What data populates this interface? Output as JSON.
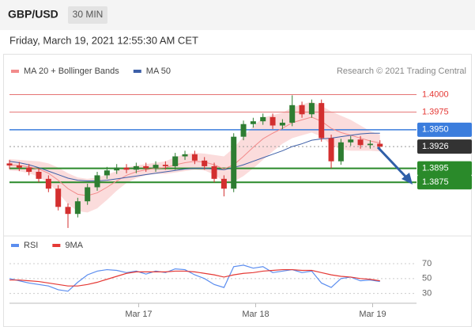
{
  "header": {
    "symbol": "GBP/USD",
    "timeframe": "30 MIN",
    "timestamp": "Friday, March 19, 2021 12:55:30 AM CET",
    "credit": "Research © 2021 Trading Central"
  },
  "chart_data": [
    {
      "type": "candlestick",
      "x": [
        0,
        4,
        8,
        12,
        16,
        20,
        24,
        28,
        32,
        36,
        40,
        44,
        48,
        52,
        56,
        60,
        64,
        68,
        72,
        76,
        80,
        84,
        88,
        92,
        96,
        100,
        104,
        108,
        112,
        116,
        120,
        124,
        128,
        132,
        136,
        140,
        144,
        148,
        152
      ],
      "open": [
        1.3902,
        1.3899,
        1.3896,
        1.389,
        1.388,
        1.3866,
        1.384,
        1.383,
        1.3848,
        1.3868,
        1.3885,
        1.3892,
        1.3896,
        1.3893,
        1.3898,
        1.3895,
        1.39,
        1.3898,
        1.3912,
        1.3915,
        1.3906,
        1.3898,
        1.388,
        1.3866,
        1.394,
        1.3958,
        1.3962,
        1.3968,
        1.3956,
        1.396,
        1.3985,
        1.3972,
        1.3988,
        1.3938,
        1.3905,
        1.3932,
        1.3936,
        1.3928,
        1.393
      ],
      "high": [
        1.3907,
        1.3904,
        1.3901,
        1.3895,
        1.3885,
        1.3871,
        1.3845,
        1.3853,
        1.3873,
        1.389,
        1.3897,
        1.3901,
        1.3901,
        1.3903,
        1.3903,
        1.3905,
        1.3905,
        1.3917,
        1.392,
        1.392,
        1.3911,
        1.3903,
        1.3885,
        1.3945,
        1.3963,
        1.3967,
        1.3973,
        1.3973,
        1.3965,
        1.3999,
        1.399,
        1.3993,
        1.3993,
        1.3943,
        1.3937,
        1.3941,
        1.3941,
        1.3935,
        1.3935
      ],
      "low": [
        1.3894,
        1.3891,
        1.3885,
        1.3875,
        1.3861,
        1.3835,
        1.381,
        1.3825,
        1.3843,
        1.3863,
        1.388,
        1.3887,
        1.3888,
        1.3888,
        1.389,
        1.389,
        1.3893,
        1.3893,
        1.3907,
        1.3901,
        1.3893,
        1.3875,
        1.3855,
        1.3861,
        1.3935,
        1.3953,
        1.3957,
        1.3951,
        1.3951,
        1.3955,
        1.3967,
        1.3967,
        1.3933,
        1.3895,
        1.39,
        1.3927,
        1.3923,
        1.3923,
        1.3921
      ],
      "close": [
        1.3899,
        1.3896,
        1.389,
        1.388,
        1.3866,
        1.384,
        1.383,
        1.3848,
        1.3868,
        1.3885,
        1.3892,
        1.3896,
        1.3893,
        1.3898,
        1.3895,
        1.39,
        1.3898,
        1.3912,
        1.3915,
        1.3906,
        1.3898,
        1.388,
        1.3866,
        1.394,
        1.3958,
        1.3962,
        1.3968,
        1.3956,
        1.396,
        1.3985,
        1.3972,
        1.3988,
        1.3938,
        1.3905,
        1.3932,
        1.3936,
        1.3928,
        1.393,
        1.3926
      ],
      "up_color": "#2e7d32",
      "down_color": "#d32f2f",
      "series": [
        {
          "name": "MA 20 + Bollinger Bands",
          "color": "#f28b8b",
          "values": [
            1.39,
            1.3899,
            1.3897,
            1.3894,
            1.3888,
            1.3878,
            1.3866,
            1.3858,
            1.3856,
            1.386,
            1.3868,
            1.3877,
            1.3885,
            1.389,
            1.3893,
            1.3895,
            1.3896,
            1.39,
            1.3903,
            1.3905,
            1.3904,
            1.39,
            1.3894,
            1.39,
            1.3912,
            1.3925,
            1.3937,
            1.3945,
            1.3952,
            1.396,
            1.3964,
            1.3968,
            1.3962,
            1.3952,
            1.3946,
            1.3942,
            1.3938,
            1.3934,
            1.3931
          ],
          "upper": [
            1.3908,
            1.3907,
            1.3906,
            1.3905,
            1.3902,
            1.3896,
            1.3888,
            1.3882,
            1.388,
            1.3882,
            1.3886,
            1.3891,
            1.3896,
            1.3899,
            1.3901,
            1.3903,
            1.3905,
            1.3911,
            1.3915,
            1.3917,
            1.3916,
            1.3914,
            1.3912,
            1.3924,
            1.394,
            1.3955,
            1.3967,
            1.3971,
            1.3974,
            1.3982,
            1.3986,
            1.399,
            1.3984,
            1.3976,
            1.397,
            1.3964,
            1.3956,
            1.3948,
            1.3943
          ],
          "lower": [
            1.3892,
            1.3891,
            1.3888,
            1.3883,
            1.3874,
            1.386,
            1.3844,
            1.3834,
            1.3832,
            1.3838,
            1.385,
            1.3863,
            1.3874,
            1.3881,
            1.3885,
            1.3887,
            1.3887,
            1.3889,
            1.3891,
            1.3893,
            1.3892,
            1.3886,
            1.3876,
            1.3876,
            1.3884,
            1.3895,
            1.3907,
            1.3919,
            1.393,
            1.3938,
            1.3942,
            1.3946,
            1.394,
            1.3928,
            1.3922,
            1.392,
            1.392,
            1.392,
            1.3919
          ]
        },
        {
          "name": "MA 50",
          "color": "#3d5fa8",
          "values": [
            1.3905,
            1.3903,
            1.39,
            1.3896,
            1.3891,
            1.3886,
            1.3881,
            1.3878,
            1.3877,
            1.3877,
            1.3878,
            1.388,
            1.3882,
            1.3884,
            1.3886,
            1.3888,
            1.389,
            1.3892,
            1.3894,
            1.3895,
            1.3895,
            1.3894,
            1.3893,
            1.3896,
            1.39,
            1.3905,
            1.391,
            1.3915,
            1.392,
            1.3926,
            1.393,
            1.3935,
            1.3937,
            1.3938,
            1.394,
            1.3942,
            1.3944,
            1.3945,
            1.3945
          ]
        }
      ],
      "levels": [
        {
          "value": 1.4,
          "label": "1.4000",
          "color": "#e57373",
          "label_box": false
        },
        {
          "value": 1.3975,
          "label": "1.3975",
          "color": "#e57373",
          "label_box": false
        },
        {
          "value": 1.395,
          "label": "1.3950",
          "color": "#3b7ddd",
          "label_box": true
        },
        {
          "value": 1.3926,
          "label": "1.3926",
          "color": "#333333",
          "label_box": true,
          "dotted": true
        },
        {
          "value": 1.3895,
          "label": "1.3895",
          "color": "#2a8a2a",
          "label_box": true
        },
        {
          "value": 1.3875,
          "label": "1.3875",
          "color": "#2a8a2a",
          "label_box": true
        }
      ],
      "xlim": [
        0,
        167
      ],
      "ylim": [
        1.3802,
        1.4022
      ]
    },
    {
      "type": "line",
      "x": [
        0,
        4,
        8,
        12,
        16,
        20,
        24,
        28,
        32,
        36,
        40,
        44,
        48,
        52,
        56,
        60,
        64,
        68,
        72,
        76,
        80,
        84,
        88,
        92,
        96,
        100,
        104,
        108,
        112,
        116,
        120,
        124,
        128,
        132,
        136,
        140,
        144,
        148,
        152
      ],
      "series": [
        {
          "name": "RSI",
          "color": "#5b8def",
          "values": [
            50,
            47,
            44,
            42,
            40,
            35,
            33,
            45,
            55,
            60,
            62,
            61,
            58,
            60,
            56,
            60,
            58,
            63,
            62,
            55,
            50,
            42,
            38,
            66,
            68,
            64,
            66,
            58,
            60,
            62,
            58,
            60,
            44,
            38,
            50,
            52,
            47,
            48,
            46
          ]
        },
        {
          "name": "9MA",
          "color": "#e53935",
          "values": [
            48,
            48,
            47,
            46,
            44,
            42,
            40,
            40,
            42,
            45,
            49,
            53,
            57,
            59,
            59,
            59,
            59,
            60,
            60,
            59,
            57,
            55,
            52,
            55,
            57,
            58,
            60,
            61,
            62,
            62,
            61,
            61,
            58,
            55,
            53,
            52,
            50,
            49,
            47
          ]
        }
      ],
      "xlim": [
        0,
        167
      ],
      "ylim": [
        20,
        86
      ],
      "yticks": [
        30,
        50,
        70
      ],
      "xticks": [
        {
          "value": 53,
          "label": "Mar 17"
        },
        {
          "value": 101,
          "label": "Mar 18"
        },
        {
          "value": 149,
          "label": "Mar 19"
        }
      ]
    }
  ]
}
